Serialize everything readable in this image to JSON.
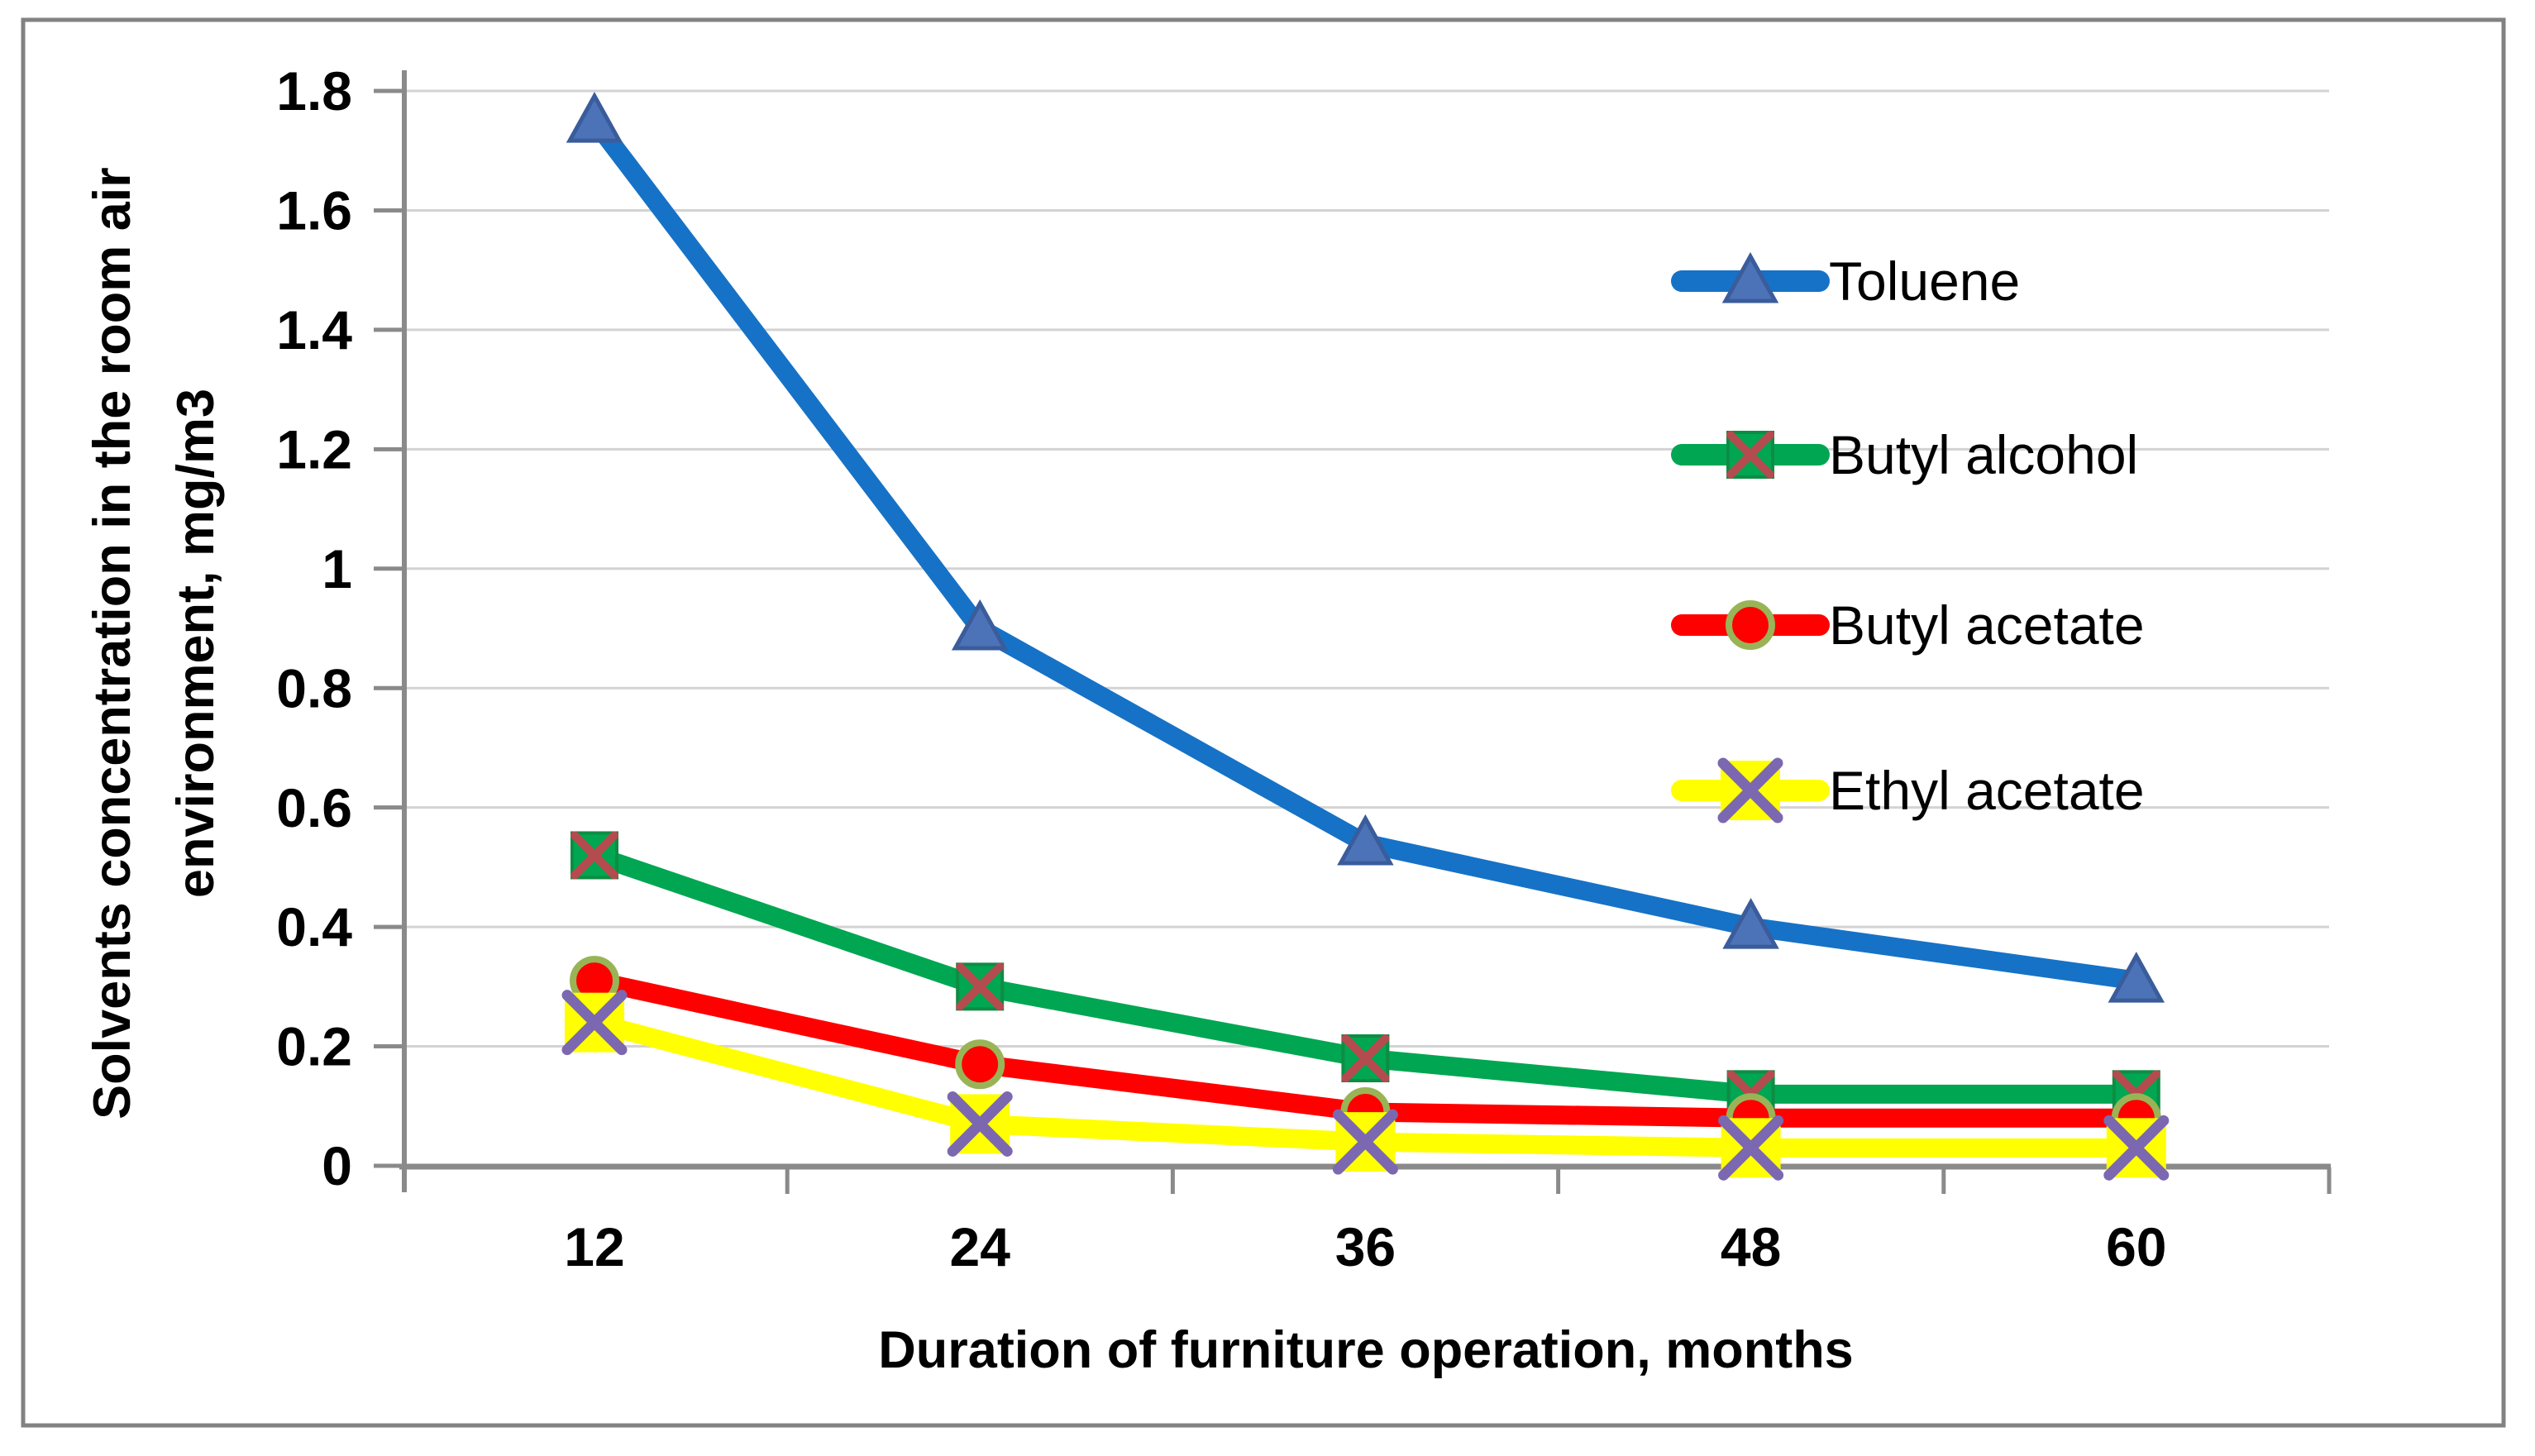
{
  "chart_data": {
    "type": "line",
    "title": "",
    "xlabel": "Duration of furniture operation, months",
    "ylabel": "Solvents concentration in the room air\nenvironment, mg/m3",
    "categories": [
      12,
      24,
      36,
      48,
      60
    ],
    "x_tick_labels": [
      "12",
      "24",
      "36",
      "48",
      "60"
    ],
    "y_tick_labels": [
      "0",
      "0.2",
      "0.4",
      "0.6",
      "0.8",
      "1",
      "1.2",
      "1.4",
      "1.6",
      "1.8"
    ],
    "ylim": [
      0,
      1.8
    ],
    "ytick_step": 0.2,
    "grid": true,
    "legend_position": "inside-right",
    "series": [
      {
        "name": "Toluene",
        "values": [
          1.75,
          0.9,
          0.54,
          0.4,
          0.31
        ],
        "line_color": "#1672C6",
        "marker": "triangle",
        "marker_fill": "#4C73B8",
        "marker_stroke": "#3B5C9B",
        "marker_x_color": ""
      },
      {
        "name": "Butyl alcohol",
        "values": [
          0.52,
          0.3,
          0.18,
          0.12,
          0.12
        ],
        "line_color": "#00A651",
        "marker": "square-x",
        "marker_fill": "#00A651",
        "marker_stroke": "#0E8C44",
        "marker_x_color": "#B44B4E"
      },
      {
        "name": "Butyl acetate",
        "values": [
          0.31,
          0.17,
          0.09,
          0.08,
          0.08
        ],
        "line_color": "#FE0000",
        "marker": "circle",
        "marker_fill": "#FE0000",
        "marker_stroke": "#99B457",
        "marker_x_color": ""
      },
      {
        "name": "Ethyl acetate",
        "values": [
          0.24,
          0.07,
          0.04,
          0.03,
          0.03
        ],
        "line_color": "#FFFF00",
        "marker": "x-square",
        "marker_fill": "#FFFF00",
        "marker_stroke": "#FFFF00",
        "marker_x_color": "#7B68B0"
      }
    ],
    "colors": {
      "gridline": "#D3D3D3",
      "axis": "#8A8A8A",
      "text": "#000000",
      "border": "#828282",
      "background": "#FFFFFF"
    }
  }
}
